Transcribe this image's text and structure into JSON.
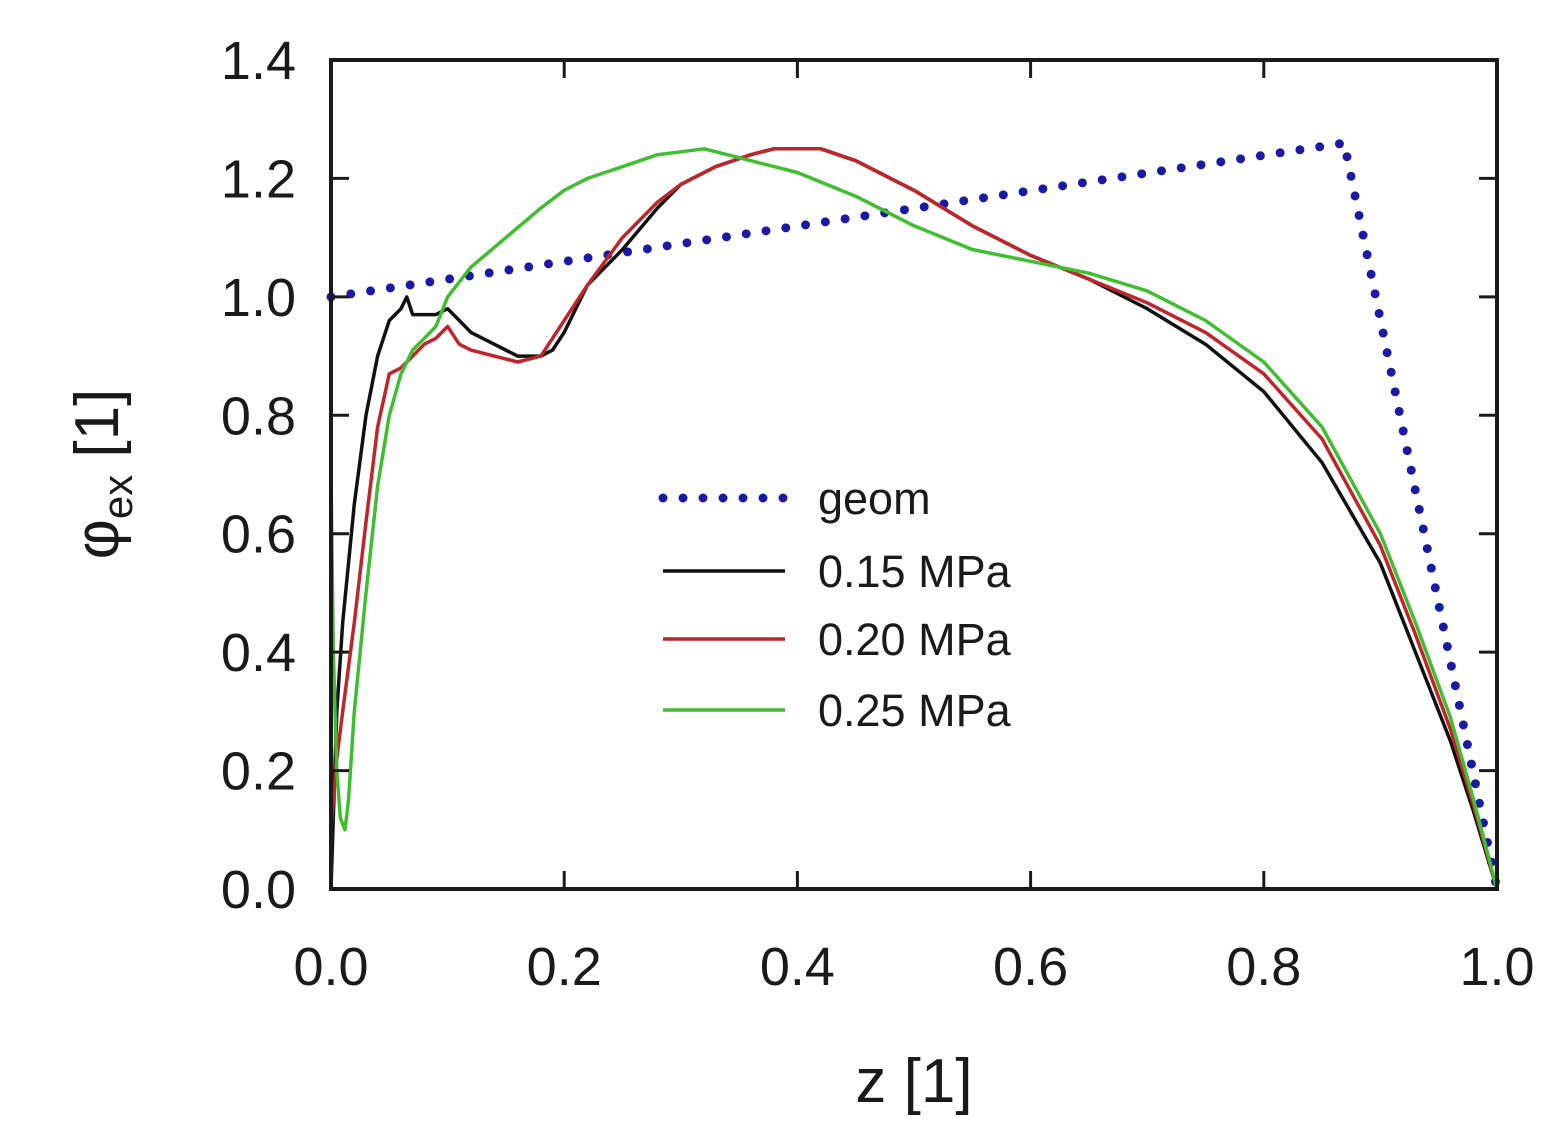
{
  "chart_data": {
    "type": "line",
    "title": "",
    "xlabel": "z [1]",
    "ylabel_main": "φ",
    "ylabel_sub": "ex",
    "ylabel_unit": "[1]",
    "xlim": [
      0,
      1.0
    ],
    "ylim": [
      0,
      1.4
    ],
    "xticks": [
      0.0,
      0.2,
      0.4,
      0.6,
      0.8,
      1.0
    ],
    "xtick_labels": [
      "0.0",
      "0.2",
      "0.4",
      "0.6",
      "0.8",
      "1.0"
    ],
    "yticks": [
      0.0,
      0.2,
      0.4,
      0.6,
      0.8,
      1.0,
      1.2,
      1.4
    ],
    "ytick_labels": [
      "0.0",
      "0.2",
      "0.4",
      "0.6",
      "0.8",
      "1.0",
      "1.2",
      "1.4"
    ],
    "grid": false,
    "legend_position": "center",
    "series": [
      {
        "name": "geom",
        "color": "#1a1aa6",
        "style": "dotted",
        "x": [
          0.0,
          0.87,
          0.87,
          1.0
        ],
        "y": [
          1.0,
          1.26,
          1.25,
          0.0
        ]
      },
      {
        "name": "0.15 MPa",
        "color": "#111111",
        "style": "solid",
        "x": [
          0.0,
          0.002,
          0.005,
          0.01,
          0.015,
          0.02,
          0.03,
          0.04,
          0.05,
          0.06,
          0.065,
          0.07,
          0.08,
          0.09,
          0.1,
          0.11,
          0.12,
          0.14,
          0.16,
          0.18,
          0.19,
          0.2,
          0.22,
          0.25,
          0.28,
          0.3,
          0.33,
          0.36,
          0.38,
          0.4,
          0.42,
          0.45,
          0.5,
          0.55,
          0.6,
          0.65,
          0.7,
          0.75,
          0.8,
          0.85,
          0.9,
          0.93,
          0.96,
          0.98,
          1.0
        ],
        "y": [
          0.0,
          0.12,
          0.3,
          0.45,
          0.55,
          0.65,
          0.8,
          0.9,
          0.96,
          0.98,
          1.0,
          0.97,
          0.97,
          0.97,
          0.98,
          0.96,
          0.94,
          0.92,
          0.9,
          0.9,
          0.91,
          0.94,
          1.02,
          1.08,
          1.15,
          1.19,
          1.22,
          1.24,
          1.25,
          1.25,
          1.25,
          1.23,
          1.18,
          1.12,
          1.07,
          1.03,
          0.98,
          0.92,
          0.84,
          0.72,
          0.55,
          0.4,
          0.25,
          0.13,
          0.0
        ]
      },
      {
        "name": "0.20 MPa",
        "color": "#c0252c",
        "style": "solid",
        "x": [
          0.0,
          0.002,
          0.005,
          0.01,
          0.02,
          0.03,
          0.04,
          0.05,
          0.06,
          0.07,
          0.08,
          0.09,
          0.1,
          0.11,
          0.12,
          0.14,
          0.16,
          0.18,
          0.2,
          0.22,
          0.25,
          0.28,
          0.3,
          0.33,
          0.36,
          0.38,
          0.4,
          0.42,
          0.45,
          0.5,
          0.55,
          0.6,
          0.65,
          0.7,
          0.75,
          0.8,
          0.85,
          0.9,
          0.93,
          0.96,
          0.98,
          1.0
        ],
        "y": [
          0.1,
          0.15,
          0.22,
          0.3,
          0.45,
          0.62,
          0.78,
          0.87,
          0.88,
          0.9,
          0.92,
          0.93,
          0.95,
          0.92,
          0.91,
          0.9,
          0.89,
          0.9,
          0.96,
          1.02,
          1.1,
          1.16,
          1.19,
          1.22,
          1.24,
          1.25,
          1.25,
          1.25,
          1.23,
          1.18,
          1.12,
          1.07,
          1.03,
          0.99,
          0.94,
          0.87,
          0.76,
          0.58,
          0.43,
          0.27,
          0.14,
          0.0
        ]
      },
      {
        "name": "0.25 MPa",
        "color": "#3fbf2f",
        "style": "solid",
        "x": [
          0.0,
          0.002,
          0.005,
          0.008,
          0.012,
          0.015,
          0.02,
          0.03,
          0.04,
          0.05,
          0.06,
          0.07,
          0.08,
          0.09,
          0.1,
          0.12,
          0.15,
          0.18,
          0.2,
          0.22,
          0.25,
          0.28,
          0.3,
          0.32,
          0.34,
          0.36,
          0.38,
          0.4,
          0.45,
          0.5,
          0.55,
          0.6,
          0.65,
          0.7,
          0.75,
          0.8,
          0.85,
          0.9,
          0.93,
          0.96,
          0.98,
          1.0
        ],
        "y": [
          0.7,
          0.4,
          0.2,
          0.12,
          0.1,
          0.15,
          0.3,
          0.5,
          0.68,
          0.8,
          0.87,
          0.91,
          0.93,
          0.95,
          1.0,
          1.05,
          1.1,
          1.15,
          1.18,
          1.2,
          1.22,
          1.24,
          1.245,
          1.25,
          1.24,
          1.23,
          1.22,
          1.21,
          1.17,
          1.12,
          1.08,
          1.06,
          1.04,
          1.01,
          0.96,
          0.89,
          0.78,
          0.6,
          0.45,
          0.29,
          0.15,
          0.0
        ]
      }
    ]
  }
}
